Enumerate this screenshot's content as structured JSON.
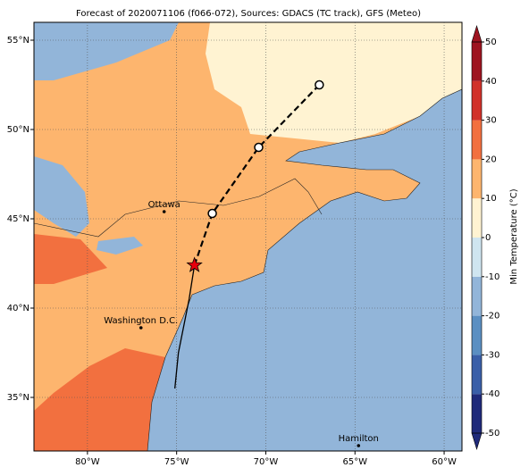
{
  "chart_data": {
    "type": "map",
    "title": "Forecast of 2020071106 (f066-072), Sources: GDACS (TC track), GFS (Meteo)",
    "xlim": [
      -83,
      -59
    ],
    "ylim": [
      32,
      56
    ],
    "xticks": [
      {
        "value": -80,
        "label": "80°W"
      },
      {
        "value": -75,
        "label": "75°W"
      },
      {
        "value": -70,
        "label": "70°W"
      },
      {
        "value": -65,
        "label": "65°W"
      },
      {
        "value": -60,
        "label": "60°W"
      }
    ],
    "yticks": [
      {
        "value": 35,
        "label": "35°N"
      },
      {
        "value": 40,
        "label": "40°N"
      },
      {
        "value": 45,
        "label": "45°N"
      },
      {
        "value": 50,
        "label": "50°N"
      },
      {
        "value": 55,
        "label": "55°N"
      }
    ],
    "grid": true,
    "colorbar": {
      "label": "Min Temperature (°C)",
      "lim": [
        -50,
        50
      ],
      "ticks": [
        -50,
        -40,
        -30,
        -20,
        -10,
        0,
        10,
        20,
        30,
        40,
        50
      ],
      "colors": [
        "#1f2a7a",
        "#3a5fa8",
        "#5b8fc2",
        "#92b5d9",
        "#cfe5f0",
        "#fff3d2",
        "#fdb56e",
        "#f2703f",
        "#d1312a",
        "#9e1420"
      ]
    },
    "track": {
      "x": [
        -75.1,
        -74.9,
        -74.3,
        -74.0,
        -73.0,
        -70.4,
        -67.0
      ],
      "y": [
        35.5,
        37.5,
        40.5,
        42.4,
        45.3,
        49.0,
        52.5
      ]
    },
    "cities": [
      {
        "name": "Ottawa",
        "lon": -75.7,
        "lat": 45.4
      },
      {
        "name": "Washington D.C.",
        "lon": -77.0,
        "lat": 38.9
      },
      {
        "name": "Hamilton",
        "lon": -64.8,
        "lat": 32.3
      }
    ]
  }
}
